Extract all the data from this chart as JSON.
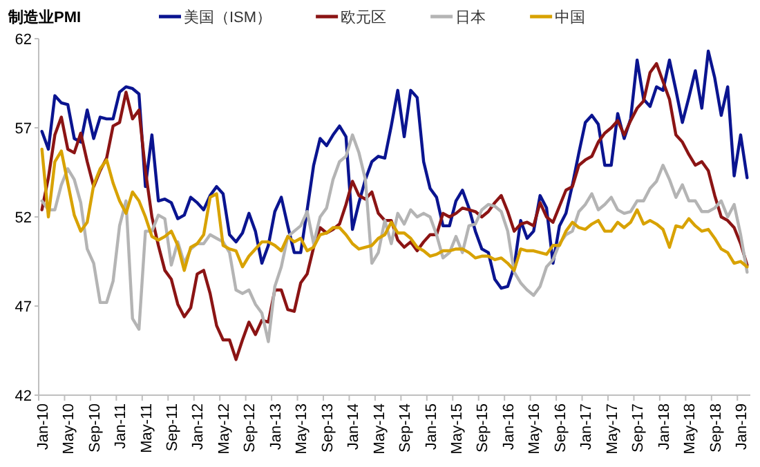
{
  "chart_data": {
    "type": "line",
    "title": "制造业PMI",
    "legend": "top",
    "grid": false,
    "marker": "none",
    "line_style": "solid",
    "ylim": [
      42,
      62
    ],
    "yticks": [
      42,
      47,
      52,
      57,
      62
    ],
    "categories": [
      "Jan-10",
      null,
      null,
      null,
      "May-10",
      null,
      null,
      null,
      "Sep-10",
      null,
      null,
      null,
      "Jan-11",
      null,
      null,
      null,
      "May-11",
      null,
      null,
      null,
      "Sep-11",
      null,
      null,
      null,
      "Jan-12",
      null,
      null,
      null,
      "May-12",
      null,
      null,
      null,
      "Sep-12",
      null,
      null,
      null,
      "Jan-13",
      null,
      null,
      null,
      "May-13",
      null,
      null,
      null,
      "Sep-13",
      null,
      null,
      null,
      "Jan-14",
      null,
      null,
      null,
      "May-14",
      null,
      null,
      null,
      "Sep-14",
      null,
      null,
      null,
      "Jan-15",
      null,
      null,
      null,
      "May-15",
      null,
      null,
      null,
      "Sep-15",
      null,
      null,
      null,
      "Jan-16",
      null,
      null,
      null,
      "May-16",
      null,
      null,
      null,
      "Sep-16",
      null,
      null,
      null,
      "Jan-17",
      null,
      null,
      null,
      "May-17",
      null,
      null,
      null,
      "Sep-17",
      null,
      null,
      null,
      "Jan-18",
      null,
      null,
      null,
      "May-18",
      null,
      null,
      null,
      "Sep-18",
      null,
      null,
      null,
      "Jan-19",
      null
    ],
    "series": [
      {
        "name": "美国（ISM）",
        "color": "#0a1490",
        "values": [
          56.8,
          55.8,
          58.8,
          58.4,
          58.3,
          56.4,
          56.2,
          58.0,
          56.4,
          57.6,
          57.5,
          57.5,
          59.0,
          59.3,
          59.2,
          58.9,
          53.7,
          56.6,
          52.9,
          53.0,
          52.8,
          51.9,
          52.1,
          53.1,
          52.8,
          52.4,
          53.2,
          53.7,
          53.3,
          51.0,
          50.6,
          51.1,
          52.2,
          51.2,
          49.4,
          50.4,
          52.3,
          53.1,
          51.5,
          50.0,
          50.0,
          52.4,
          54.9,
          56.4,
          56.0,
          56.6,
          57.1,
          56.5,
          51.3,
          52.8,
          54.1,
          55.1,
          55.4,
          55.3,
          57.1,
          59.1,
          56.5,
          59.1,
          58.7,
          55.1,
          53.6,
          53.1,
          51.5,
          51.5,
          52.9,
          53.5,
          52.5,
          51.2,
          50.2,
          50.0,
          48.5,
          48.0,
          48.1,
          49.2,
          51.8,
          50.8,
          51.2,
          53.2,
          52.5,
          49.4,
          51.5,
          52.2,
          53.8,
          55.6,
          57.3,
          57.7,
          57.2,
          54.9,
          54.9,
          57.8,
          56.4,
          57.5,
          60.8,
          58.6,
          58.2,
          59.3,
          59.1,
          60.8,
          59.1,
          57.3,
          58.7,
          60.2,
          58.1,
          61.3,
          59.8,
          57.7,
          59.3,
          54.3,
          56.6,
          54.2
        ]
      },
      {
        "name": "欧元区",
        "color": "#8b1414",
        "values": [
          52.4,
          54.2,
          56.6,
          57.6,
          55.8,
          55.6,
          56.7,
          55.1,
          53.7,
          54.6,
          55.3,
          57.1,
          57.3,
          59.0,
          57.5,
          58.0,
          54.6,
          52.0,
          50.4,
          49.0,
          48.5,
          47.1,
          46.4,
          46.9,
          48.8,
          49.0,
          47.7,
          45.9,
          45.1,
          45.1,
          44.0,
          45.1,
          46.1,
          45.4,
          46.2,
          46.1,
          47.9,
          47.9,
          46.8,
          46.7,
          48.3,
          48.8,
          50.3,
          51.4,
          51.1,
          51.3,
          51.6,
          52.7,
          54.0,
          53.2,
          53.0,
          53.4,
          52.2,
          51.8,
          51.8,
          50.7,
          50.3,
          50.6,
          50.1,
          50.6,
          51.0,
          51.0,
          52.2,
          52.0,
          52.2,
          52.5,
          52.4,
          52.3,
          52.0,
          52.3,
          52.8,
          53.2,
          52.3,
          51.2,
          51.6,
          51.7,
          51.5,
          52.8,
          52.0,
          51.7,
          52.6,
          53.5,
          53.7,
          54.9,
          55.2,
          55.4,
          56.2,
          56.7,
          57.0,
          57.4,
          56.6,
          57.4,
          58.1,
          58.5,
          60.1,
          60.6,
          59.6,
          58.6,
          56.6,
          56.2,
          55.5,
          54.9,
          55.1,
          54.6,
          53.2,
          52.0,
          51.8,
          51.4,
          50.5,
          49.3
        ]
      },
      {
        "name": "日本",
        "color": "#b4b4b4",
        "values": [
          52.9,
          52.4,
          52.4,
          53.8,
          54.7,
          54.1,
          52.8,
          50.2,
          49.4,
          47.2,
          47.2,
          48.4,
          51.5,
          52.9,
          46.3,
          45.7,
          51.2,
          51.2,
          52.1,
          51.9,
          49.3,
          50.6,
          49.4,
          50.2,
          50.5,
          50.5,
          51.0,
          50.8,
          50.6,
          50.0,
          47.9,
          47.7,
          47.9,
          47.1,
          46.6,
          45.0,
          48.1,
          49.2,
          50.9,
          51.2,
          51.5,
          52.3,
          50.5,
          52.0,
          52.5,
          54.1,
          55.1,
          55.4,
          56.6,
          55.6,
          54.1,
          49.4,
          50.0,
          51.8,
          50.5,
          52.2,
          51.6,
          52.4,
          52.0,
          52.2,
          52.0,
          51.0,
          49.7,
          50.0,
          50.9,
          50.0,
          51.5,
          51.6,
          52.4,
          52.7,
          52.6,
          52.3,
          51.2,
          48.9,
          48.3,
          47.9,
          47.6,
          48.1,
          49.2,
          49.6,
          50.5,
          51.0,
          51.2,
          52.3,
          52.7,
          53.3,
          52.4,
          52.7,
          53.1,
          52.4,
          52.2,
          52.3,
          52.9,
          52.9,
          53.6,
          54.0,
          54.9,
          54.1,
          53.1,
          53.8,
          52.9,
          52.9,
          52.3,
          52.3,
          52.5,
          52.9,
          52.0,
          52.7,
          51.0,
          48.9
        ]
      },
      {
        "name": "中国",
        "color": "#d8a200",
        "values": [
          55.8,
          52.0,
          55.1,
          55.7,
          53.9,
          52.1,
          51.2,
          51.7,
          53.8,
          54.7,
          55.2,
          53.9,
          52.9,
          52.2,
          53.4,
          52.9,
          52.0,
          50.9,
          50.7,
          50.9,
          51.2,
          50.4,
          49.0,
          50.3,
          50.5,
          51.0,
          53.1,
          53.3,
          50.4,
          50.2,
          50.1,
          49.2,
          49.8,
          50.2,
          50.6,
          50.6,
          50.4,
          50.1,
          50.9,
          50.6,
          50.8,
          50.1,
          50.3,
          51.0,
          51.1,
          51.4,
          51.4,
          51.0,
          50.5,
          50.2,
          50.3,
          50.4,
          50.8,
          51.0,
          51.7,
          51.1,
          51.1,
          50.8,
          50.3,
          50.1,
          49.8,
          49.9,
          50.1,
          50.1,
          50.2,
          50.2,
          50.0,
          49.7,
          49.8,
          49.8,
          49.6,
          49.7,
          49.4,
          49.0,
          50.2,
          50.1,
          50.1,
          50.0,
          49.9,
          50.4,
          50.4,
          51.2,
          51.7,
          51.4,
          51.3,
          51.6,
          51.8,
          51.2,
          51.2,
          51.7,
          51.4,
          51.7,
          52.4,
          51.6,
          51.8,
          51.6,
          51.3,
          50.3,
          51.5,
          51.4,
          51.9,
          51.5,
          51.2,
          51.3,
          50.8,
          50.2,
          50.0,
          49.4,
          49.5,
          49.2
        ]
      }
    ]
  }
}
